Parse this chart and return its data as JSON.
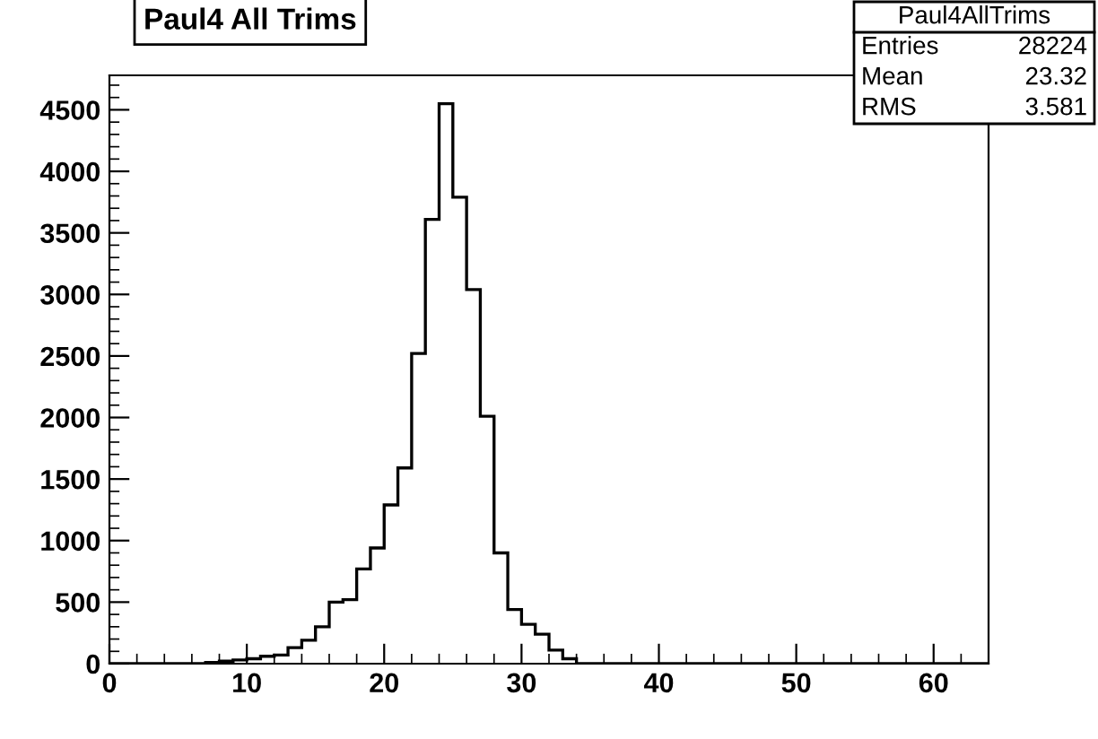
{
  "chart_data": {
    "type": "histogram",
    "title": "Paul4 All Trims",
    "bins": [
      0,
      1,
      2,
      3,
      4,
      5,
      6,
      7,
      8,
      9,
      10,
      11,
      12,
      13,
      14,
      15,
      16,
      17,
      18,
      19,
      20,
      21,
      22,
      23,
      24,
      25,
      26,
      27,
      28,
      29,
      30,
      31,
      32,
      33,
      34,
      35,
      36,
      37,
      38,
      39,
      40,
      41,
      42,
      43,
      44,
      45,
      46,
      47,
      48,
      49,
      50,
      51,
      52,
      53,
      54,
      55,
      56,
      57,
      58,
      59,
      60,
      61,
      62,
      63,
      64
    ],
    "values": [
      0,
      0,
      0,
      0,
      0,
      0,
      0,
      10,
      20,
      30,
      40,
      60,
      70,
      130,
      190,
      300,
      500,
      520,
      770,
      940,
      1290,
      1590,
      2520,
      3610,
      4550,
      3790,
      3040,
      2010,
      900,
      440,
      320,
      240,
      110,
      40,
      0,
      0,
      0,
      0,
      0,
      0,
      0,
      0,
      0,
      0,
      0,
      0,
      0,
      0,
      0,
      0,
      0,
      0,
      0,
      0,
      0,
      0,
      0,
      0,
      0,
      0,
      0,
      0,
      0,
      0
    ],
    "color": "#000000",
    "xlim": [
      0,
      64
    ],
    "xticks": [
      0,
      10,
      20,
      30,
      40,
      50,
      60
    ],
    "ylim": [
      0,
      4780
    ],
    "yticks": [
      0,
      500,
      1000,
      1500,
      2000,
      2500,
      3000,
      3500,
      4000,
      4500
    ],
    "grid": false,
    "annotations": [
      "Paul4AllTrims",
      "Entries",
      "28224",
      "Mean",
      "23.32",
      "RMS",
      "3.581"
    ]
  }
}
